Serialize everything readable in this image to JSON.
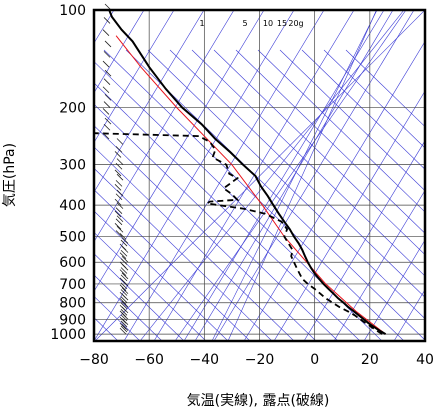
{
  "chart_data": {
    "type": "line",
    "subtype": "skew-T log-p thermodynamic diagram",
    "title": "",
    "xlabel": "気温(実線), 露点(破線)",
    "ylabel": "気圧(hPa)",
    "x_range": [
      -80,
      40
    ],
    "y_range_hPa": [
      1050,
      100
    ],
    "y_scale": "log",
    "x_ticks": [
      -80,
      -60,
      -40,
      -20,
      0,
      20,
      40
    ],
    "y_ticks": [
      100,
      200,
      300,
      400,
      500,
      600,
      700,
      800,
      900,
      1000
    ],
    "grid": true,
    "mixing_ratio_labels": [
      "1",
      "5",
      "10",
      "15",
      "20g"
    ],
    "colors": {
      "temperature": "#000000",
      "dewpoint": "#000000",
      "reference_curve": "#e8141c",
      "guide_lines": "#3d3dd6",
      "wind_barbs": "#222222"
    },
    "series": [
      {
        "style": "solid",
        "points": [
          [
            1000,
            25.7
          ],
          [
            975,
            23.5
          ],
          [
            950,
            21.5
          ],
          [
            925,
            19.5
          ],
          [
            900,
            17.8
          ],
          [
            875,
            16
          ],
          [
            850,
            14.2
          ],
          [
            825,
            12.2
          ],
          [
            800,
            10.5
          ],
          [
            775,
            8.5
          ],
          [
            750,
            6.8
          ],
          [
            725,
            5
          ],
          [
            700,
            3.2
          ],
          [
            675,
            1.6
          ],
          [
            650,
            0
          ],
          [
            625,
            -1.3
          ],
          [
            600,
            -2.5
          ],
          [
            575,
            -3.5
          ],
          [
            550,
            -4.5
          ],
          [
            525,
            -5.8
          ],
          [
            500,
            -7.5
          ],
          [
            475,
            -9
          ],
          [
            450,
            -11
          ],
          [
            425,
            -13
          ],
          [
            400,
            -15
          ],
          [
            375,
            -17
          ],
          [
            350,
            -19.5
          ],
          [
            325,
            -21.5
          ],
          [
            300,
            -26
          ],
          [
            275,
            -30.5
          ],
          [
            250,
            -36
          ],
          [
            225,
            -41
          ],
          [
            200,
            -48
          ],
          [
            175,
            -54
          ],
          [
            150,
            -60
          ],
          [
            125,
            -66
          ],
          [
            115,
            -70
          ],
          [
            105,
            -73.5
          ],
          [
            100,
            -74.5
          ]
        ]
      },
      {
        "style": "dashed",
        "points": [
          [
            1000,
            24.5
          ],
          [
            975,
            22.5
          ],
          [
            950,
            20.5
          ],
          [
            925,
            18.5
          ],
          [
            900,
            16.5
          ],
          [
            875,
            14.5
          ],
          [
            850,
            12
          ],
          [
            825,
            9
          ],
          [
            800,
            6.5
          ],
          [
            775,
            4
          ],
          [
            750,
            2
          ],
          [
            725,
            0
          ],
          [
            700,
            -2.5
          ],
          [
            675,
            -4.5
          ],
          [
            650,
            -5.5
          ],
          [
            625,
            -6.5
          ],
          [
            600,
            -7.5
          ],
          [
            575,
            -8.5
          ],
          [
            550,
            -8
          ],
          [
            525,
            -9.5
          ],
          [
            500,
            -11
          ],
          [
            475,
            -10
          ],
          [
            450,
            -12
          ],
          [
            425,
            -18
          ],
          [
            410,
            -26
          ],
          [
            400,
            -35
          ],
          [
            395,
            -39
          ],
          [
            390,
            -38
          ],
          [
            385,
            -28
          ],
          [
            370,
            -30
          ],
          [
            355,
            -33
          ],
          [
            340,
            -30
          ],
          [
            330,
            -28
          ],
          [
            320,
            -31
          ],
          [
            300,
            -32
          ],
          [
            285,
            -37
          ],
          [
            270,
            -36
          ],
          [
            255,
            -38
          ],
          [
            245,
            -42
          ],
          [
            240,
            -80
          ]
        ]
      },
      {
        "style": "reference",
        "points": [
          [
            1000,
            25.7
          ],
          [
            850,
            15
          ],
          [
            700,
            4
          ],
          [
            500,
            -11
          ],
          [
            400,
            -19
          ],
          [
            300,
            -30
          ],
          [
            200,
            -50
          ],
          [
            150,
            -63
          ],
          [
            120,
            -72
          ]
        ]
      }
    ],
    "wind_barbs_hPa": [
      1000,
      985,
      975,
      965,
      950,
      935,
      925,
      910,
      900,
      885,
      875,
      860,
      850,
      835,
      825,
      810,
      800,
      785,
      775,
      760,
      750,
      735,
      725,
      710,
      700,
      685,
      675,
      660,
      650,
      635,
      625,
      610,
      600,
      585,
      575,
      560,
      550,
      535,
      525,
      510,
      500,
      485,
      475,
      460,
      450,
      435,
      425,
      410,
      400,
      385,
      375,
      360,
      350,
      335,
      325,
      310,
      300,
      285,
      275,
      260,
      250,
      235,
      225,
      210,
      200,
      190,
      180,
      170,
      160,
      150,
      140,
      130,
      120,
      110,
      100
    ]
  }
}
